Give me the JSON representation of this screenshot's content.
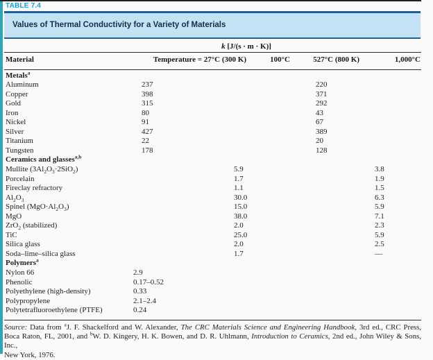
{
  "page": {
    "table_label": "TABLE 7.4",
    "banner_title": "Values of Thermal Conductivity for a Variety of Materials",
    "units_header": "*k* [J/(s · m · K)]",
    "columns": [
      "Material",
      "Temperature = 27°C (300 K)",
      "100°C",
      "527°C (800 K)",
      "1,000°C"
    ]
  },
  "colors": {
    "accent_teal": "#2FA6B6",
    "label_blue": "#1A9CD8",
    "rule_navy": "#235E8C",
    "banner_bg": "#C4E2F4",
    "banner_text": "#0F2F4E"
  },
  "table": {
    "rows": [
      {
        "group": "metals",
        "section": true,
        "name": "Metals^a^"
      },
      {
        "group": "metals",
        "name": "Aluminum",
        "c1": "237",
        "c3": "220"
      },
      {
        "group": "metals",
        "name": "Copper",
        "c1": "398",
        "c3": "371"
      },
      {
        "group": "metals",
        "name": "Gold",
        "c1": "315",
        "c3": "292"
      },
      {
        "group": "metals",
        "name": "Iron",
        "c1": "80",
        "c3": "43"
      },
      {
        "group": "metals",
        "name": "Nickel",
        "c1": "91",
        "c3": "67"
      },
      {
        "group": "metals",
        "name": "Silver",
        "c1": "427",
        "c3": "389"
      },
      {
        "group": "metals",
        "name": "Titanium",
        "c1": "22",
        "c3": "20"
      },
      {
        "group": "metals",
        "name": "Tungsten",
        "c1": "178",
        "c3": "128"
      },
      {
        "group": "ceramics",
        "section": true,
        "name": "Ceramics and glasses^a,b^"
      },
      {
        "group": "ceramics",
        "name": "Mullite (3Al~2~O~3~·2SiO~2~)",
        "c2": "5.9",
        "c4": "3.8"
      },
      {
        "group": "ceramics",
        "name": "Porcelain",
        "c2": "1.7",
        "c4": "1.9"
      },
      {
        "group": "ceramics",
        "name": "Fireclay refractory",
        "c2": "1.1",
        "c4": "1.5"
      },
      {
        "group": "ceramics",
        "name": "Al~2~O~3~",
        "c2": "30.0",
        "c4": "6.3"
      },
      {
        "group": "ceramics",
        "name": "Spinel (MgO·Al~2~O~3~)",
        "c2": "15.0",
        "c4": "5.9"
      },
      {
        "group": "ceramics",
        "name": "MgO",
        "c2": "38.0",
        "c4": "7.1"
      },
      {
        "group": "ceramics",
        "name": "ZrO~2~ (stabilized)",
        "c2": "2.0",
        "c4": "2.3"
      },
      {
        "group": "ceramics",
        "name": "TiC",
        "c2": "25.0",
        "c4": "5.9"
      },
      {
        "group": "ceramics",
        "name": "Silica glass",
        "c2": "2.0",
        "c4": "2.5"
      },
      {
        "group": "ceramics",
        "name": "Soda–lime–silica glass",
        "c2": "1.7",
        "c4": "—"
      },
      {
        "group": "polymers",
        "section": true,
        "name": "Polymers^a^"
      },
      {
        "group": "polymers",
        "name": "Nylon 66",
        "c1": "2.9"
      },
      {
        "group": "polymers",
        "name": "Phenolic",
        "c1": "0.17–0.52"
      },
      {
        "group": "polymers",
        "name": "Polyethylene (high-density)",
        "c1": "0.33"
      },
      {
        "group": "polymers",
        "name": "Polypropylene",
        "c1": "2.1–2.4"
      },
      {
        "group": "polymers",
        "name": "Polytetrafluoroethylene (PTFE)",
        "c1": "0.24"
      }
    ]
  },
  "source": {
    "line1": "*Source:* Data from ^a^J. F. Shackelford and W. Alexander, *The CRC Materials Science and Engineering Handbook*, 3rd ed., CRC Press,",
    "line2": "Boca Raton, FL, 2001, and ^b^W. D. Kingery, H. K. Bowen, and D. R. Uhlmann, *Introduction to Ceramics*, 2nd ed., John Wiley &amp; Sons, Inc.,",
    "line3": "New York, 1976."
  }
}
